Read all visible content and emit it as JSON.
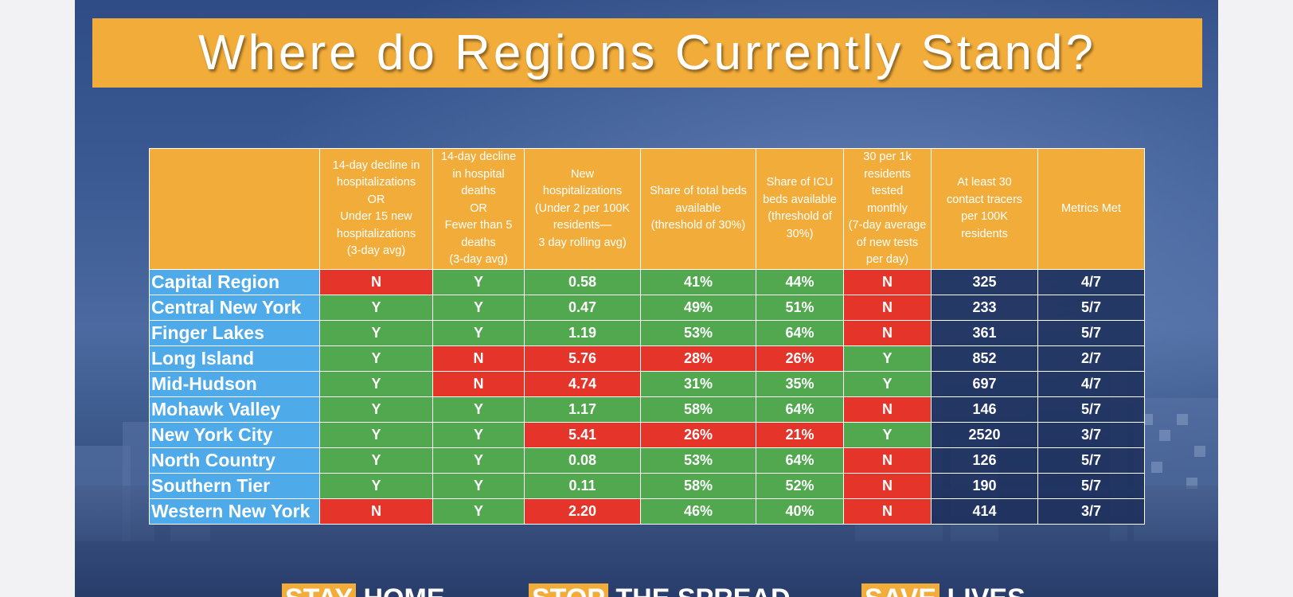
{
  "title": "Where do Regions Currently Stand?",
  "colors": {
    "header": "#f2ac3a",
    "region": "#4eaae8",
    "green": "#52a84f",
    "red": "#e5352a",
    "navy": "#1e305c"
  },
  "table": {
    "headers": [
      "",
      "14-day decline in\nhospitalizations\nOR\nUnder 15 new\nhospitalizations\n(3-day avg)",
      "14-day decline\nin hospital\ndeaths\nOR\nFewer than 5\ndeaths\n(3-day avg)",
      "New\nhospitalizations\n(Under 2 per 100K\nresidents—\n3 day rolling avg)",
      "Share of total beds\navailable\n(threshold of 30%)",
      "Share of ICU\nbeds available\n(threshold of\n30%)",
      "30 per 1k\nresidents\ntested\nmonthly\n(7-day average\nof new tests\nper day)",
      "At least 30\ncontact tracers\nper 100K\nresidents",
      "Metrics Met"
    ],
    "rows": [
      {
        "region": "Capital Region",
        "hosp_decline": "N",
        "death_decline": "Y",
        "new_hosp": "0.58",
        "total_beds": "41%",
        "icu_beds": "44%",
        "testing": "N",
        "tracers": "325",
        "met": "4/7"
      },
      {
        "region": "Central New York",
        "hosp_decline": "Y",
        "death_decline": "Y",
        "new_hosp": "0.47",
        "total_beds": "49%",
        "icu_beds": "51%",
        "testing": "N",
        "tracers": "233",
        "met": "5/7"
      },
      {
        "region": "Finger Lakes",
        "hosp_decline": "Y",
        "death_decline": "Y",
        "new_hosp": "1.19",
        "total_beds": "53%",
        "icu_beds": "64%",
        "testing": "N",
        "tracers": "361",
        "met": "5/7"
      },
      {
        "region": "Long Island",
        "hosp_decline": "Y",
        "death_decline": "N",
        "new_hosp": "5.76",
        "total_beds": "28%",
        "icu_beds": "26%",
        "testing": "Y",
        "tracers": "852",
        "met": "2/7"
      },
      {
        "region": "Mid-Hudson",
        "hosp_decline": "Y",
        "death_decline": "N",
        "new_hosp": "4.74",
        "total_beds": "31%",
        "icu_beds": "35%",
        "testing": "Y",
        "tracers": "697",
        "met": "4/7"
      },
      {
        "region": "Mohawk Valley",
        "hosp_decline": "Y",
        "death_decline": "Y",
        "new_hosp": "1.17",
        "total_beds": "58%",
        "icu_beds": "64%",
        "testing": "N",
        "tracers": "146",
        "met": "5/7"
      },
      {
        "region": "New York City",
        "hosp_decline": "Y",
        "death_decline": "Y",
        "new_hosp": "5.41",
        "total_beds": "26%",
        "icu_beds": "21%",
        "testing": "Y",
        "tracers": "2520",
        "met": "3/7"
      },
      {
        "region": "North Country",
        "hosp_decline": "Y",
        "death_decline": "Y",
        "new_hosp": "0.08",
        "total_beds": "53%",
        "icu_beds": "64%",
        "testing": "N",
        "tracers": "126",
        "met": "5/7"
      },
      {
        "region": "Southern Tier",
        "hosp_decline": "Y",
        "death_decline": "Y",
        "new_hosp": "0.11",
        "total_beds": "58%",
        "icu_beds": "52%",
        "testing": "N",
        "tracers": "190",
        "met": "5/7"
      },
      {
        "region": "Western New York",
        "hosp_decline": "N",
        "death_decline": "Y",
        "new_hosp": "2.20",
        "total_beds": "46%",
        "icu_beds": "40%",
        "testing": "N",
        "tracers": "414",
        "met": "3/7"
      }
    ]
  },
  "footer": [
    {
      "highlight": "STAY",
      "rest": " HOME"
    },
    {
      "highlight": "STOP",
      "rest": " THE SPREAD"
    },
    {
      "highlight": "SAVE",
      "rest": " LIVES"
    }
  ]
}
